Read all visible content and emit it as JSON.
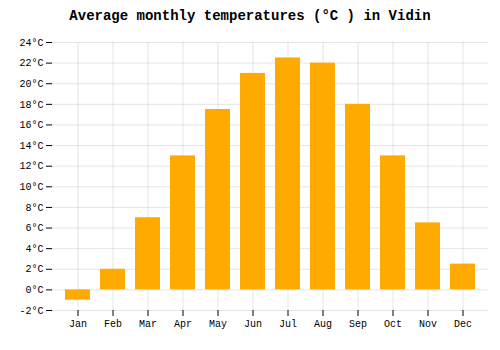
{
  "chart_data": {
    "type": "bar",
    "title": "Average monthly temperatures (°C ) in Vidin",
    "categories": [
      "Jan",
      "Feb",
      "Mar",
      "Apr",
      "May",
      "Jun",
      "Jul",
      "Aug",
      "Sep",
      "Oct",
      "Nov",
      "Dec"
    ],
    "values": [
      -1.0,
      2.0,
      7.0,
      13.0,
      17.5,
      21.0,
      22.5,
      22.0,
      18.0,
      13.0,
      6.5,
      2.5
    ],
    "color": "#FFAA00",
    "ylim": [
      -2,
      24
    ],
    "yticks": [
      {
        "value": -2,
        "label": "-2°C"
      },
      {
        "value": 0,
        "label": "0°C"
      },
      {
        "value": 2,
        "label": "2°C"
      },
      {
        "value": 4,
        "label": "4°C"
      },
      {
        "value": 6,
        "label": "6°C"
      },
      {
        "value": 8,
        "label": "8°C"
      },
      {
        "value": 10,
        "label": "10°C"
      },
      {
        "value": 12,
        "label": "12°C"
      },
      {
        "value": 14,
        "label": "14°C"
      },
      {
        "value": 16,
        "label": "16°C"
      },
      {
        "value": 18,
        "label": "18°C"
      },
      {
        "value": 20,
        "label": "20°C"
      },
      {
        "value": 22,
        "label": "22°C"
      },
      {
        "value": 24,
        "label": "24°C"
      }
    ],
    "grid": true
  }
}
